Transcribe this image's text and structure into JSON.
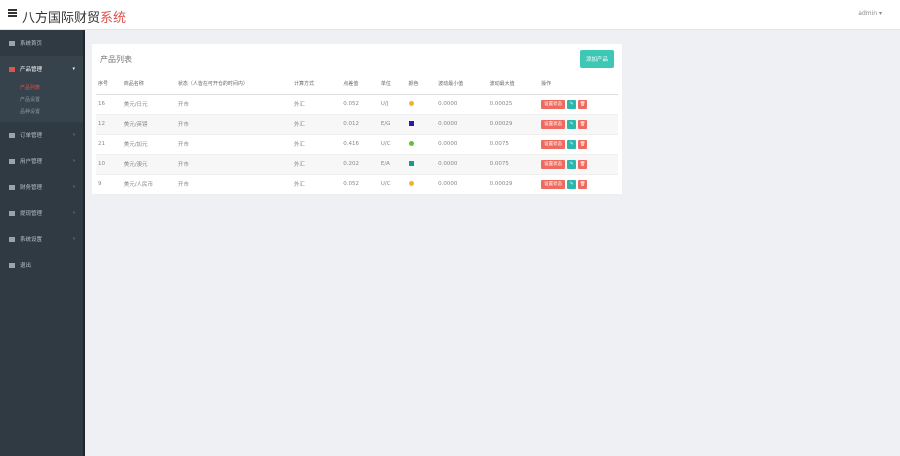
{
  "header": {
    "title_main": "八方国际财贸",
    "title_accent": "系统",
    "user": "admin ▾"
  },
  "sidebar": {
    "items": [
      {
        "label": "系统首页",
        "arrow": ""
      },
      {
        "label": "产品管理",
        "arrow": "▾",
        "active": true,
        "children": [
          "产品列表",
          "产品设置",
          "品种设置"
        ]
      },
      {
        "label": "订单管理",
        "arrow": "›"
      },
      {
        "label": "用户管理",
        "arrow": "›"
      },
      {
        "label": "财务管理",
        "arrow": "›"
      },
      {
        "label": "提现管理",
        "arrow": "›"
      },
      {
        "label": "系统设置",
        "arrow": "›"
      },
      {
        "label": "退出",
        "arrow": ""
      }
    ]
  },
  "panel": {
    "title": "产品列表",
    "add_label": "添加产品"
  },
  "table": {
    "headers": [
      "序号",
      "商品名称",
      "状态（人皆在可开仓的时间内）",
      "计算方式",
      "点差值",
      "单位",
      "颜色",
      "波动最小值",
      "波动最大值",
      "操作"
    ],
    "rows": [
      {
        "id": "16",
        "name": "美元/日元",
        "status": "开市",
        "calc": "外汇",
        "rate": "0.052",
        "unit": "U/J",
        "color": "#f0b429",
        "shape": "dot",
        "min": "0.0000",
        "max": "0.00025"
      },
      {
        "id": "12",
        "name": "美元/英镑",
        "status": "开市",
        "calc": "外汇",
        "rate": "0.012",
        "unit": "E/G",
        "color": "#2a1aa8",
        "shape": "sq",
        "min": "0.0000",
        "max": "0.00029"
      },
      {
        "id": "21",
        "name": "美元/加元",
        "status": "开市",
        "calc": "外汇",
        "rate": "0.416",
        "unit": "U/C",
        "color": "#5cc23a",
        "shape": "dot",
        "min": "0.0000",
        "max": "0.0075"
      },
      {
        "id": "10",
        "name": "美元/澳元",
        "status": "开市",
        "calc": "外汇",
        "rate": "0.202",
        "unit": "E/A",
        "color": "#1a9a8a",
        "shape": "sq",
        "min": "0.0000",
        "max": "0.0075"
      },
      {
        "id": "9",
        "name": "美元/人民币",
        "status": "开市",
        "calc": "外汇",
        "rate": "0.052",
        "unit": "U/C",
        "color": "#f0b429",
        "shape": "dot",
        "min": "0.0000",
        "max": "0.00029"
      }
    ],
    "action_status": "设置状态",
    "action_edit": "✎",
    "action_delete": "🗑"
  }
}
